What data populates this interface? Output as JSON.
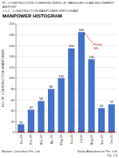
{
  "chart_data": {
    "type": "bar",
    "title": "MANPOWER HISTOGRAM",
    "header": [
      "FL. CONSTRUCTION COMMISSIONING OF TANGGUH LG ABONDONMENT AIRPORT",
      "1.1.2 - CONSTRUCTION MANPOWER HISTOGRAM"
    ],
    "footer": [
      "Mission Consultan Pte. Ltd.",
      "Sakar Abondonture Pte. Ltd.\nPg. 1.4"
    ],
    "categories": [
      "Jan-23",
      "Feb-23",
      "Mar-23",
      "Apr-23",
      "May-23",
      "Jun-23",
      "Jul-23",
      "Aug-23",
      "Sep-23",
      "Oct-23"
    ],
    "series": [
      {
        "color": "#4472C4",
        "data_labels": true,
        "values": [
          15,
          42,
          58,
          80,
          100,
          155,
          185,
          135,
          45,
          52
        ]
      },
      {
        "color": "#CC0000",
        "values": [
          2,
          2,
          2,
          2,
          2,
          2,
          2,
          2,
          2,
          2
        ]
      }
    ],
    "annotations": [
      {
        "text": "Peak=\n185",
        "category": "Jul-23",
        "value": 185,
        "color": "#CC0000"
      }
    ],
    "ylabel": "NO. OF CONSTRUCTION MANPOWER",
    "ylim": [
      0,
      200
    ],
    "yticks": [
      0,
      20,
      40,
      60,
      80,
      100,
      120,
      140,
      160,
      180,
      200
    ],
    "grid": true
  }
}
